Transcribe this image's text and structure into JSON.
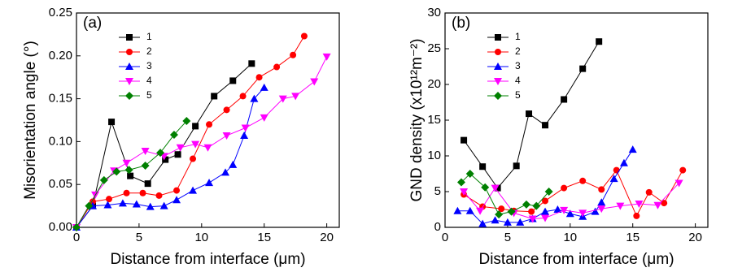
{
  "chart_data": [
    {
      "type": "line",
      "annotation": "(a)",
      "xlabel": "Distance from interface (μm)",
      "ylabel": "Misorientation angle (°)",
      "xlim": [
        0,
        21
      ],
      "xticks": [
        0,
        5,
        10,
        15,
        20
      ],
      "ylim": [
        0,
        0.25
      ],
      "yticks": [
        {
          "value": 0,
          "label": "0.00"
        },
        {
          "value": 0.05,
          "label": "0.05"
        },
        {
          "value": 0.1,
          "label": "0.10"
        },
        {
          "value": 0.15,
          "label": "0.15"
        },
        {
          "value": 0.2,
          "label": "0.20"
        },
        {
          "value": 0.25,
          "label": "0.25"
        }
      ],
      "legend": "upper left",
      "series": [
        {
          "name": "1",
          "color": "#000000",
          "marker": "square",
          "x": [
            0,
            1.3,
            2.8,
            4.3,
            5.7,
            7.1,
            8.1,
            9.5,
            11,
            12.5,
            14
          ],
          "values": [
            0,
            0.025,
            0.123,
            0.06,
            0.051,
            0.079,
            0.085,
            0.118,
            0.153,
            0.171,
            0.191
          ]
        },
        {
          "name": "2",
          "color": "#ff0000",
          "marker": "circle",
          "x": [
            0,
            1.3,
            2.6,
            4,
            5.3,
            6.6,
            8,
            9.3,
            10.6,
            12,
            13.3,
            14.6,
            16,
            17.3,
            18.2
          ],
          "values": [
            0,
            0.03,
            0.033,
            0.04,
            0.04,
            0.037,
            0.043,
            0.08,
            0.12,
            0.137,
            0.153,
            0.175,
            0.187,
            0.201,
            0.223
          ]
        },
        {
          "name": "3",
          "color": "#0000ff",
          "marker": "triangle-up",
          "x": [
            0,
            1.3,
            2.5,
            3.7,
            4.8,
            5.9,
            7,
            8,
            9.3,
            10.6,
            11.9,
            12.5,
            13.4,
            14.2,
            15
          ],
          "values": [
            0,
            0.025,
            0.026,
            0.028,
            0.027,
            0.024,
            0.025,
            0.032,
            0.043,
            0.052,
            0.064,
            0.073,
            0.107,
            0.15,
            0.163
          ]
        },
        {
          "name": "4",
          "color": "#ff00ff",
          "marker": "triangle-down",
          "x": [
            0,
            1.5,
            3,
            4,
            5.5,
            7,
            8.3,
            9.5,
            10.5,
            12,
            13.5,
            15,
            16.5,
            17.5,
            19,
            20
          ],
          "values": [
            0,
            0.038,
            0.066,
            0.075,
            0.089,
            0.083,
            0.093,
            0.097,
            0.093,
            0.107,
            0.116,
            0.128,
            0.15,
            0.153,
            0.17,
            0.199
          ]
        },
        {
          "name": "5",
          "color": "#008000",
          "marker": "diamond",
          "x": [
            0,
            1,
            2.2,
            3.2,
            4.2,
            5.5,
            6.7,
            7.8,
            8.8
          ],
          "values": [
            0,
            0.025,
            0.055,
            0.065,
            0.067,
            0.072,
            0.087,
            0.108,
            0.124
          ]
        }
      ]
    },
    {
      "type": "line",
      "annotation": "(b)",
      "xlabel": "Distance from interface (μm)",
      "ylabel": "GND density (x10¹²m⁻²)",
      "xlim": [
        0,
        21
      ],
      "xticks": [
        0,
        5,
        10,
        15,
        20
      ],
      "ylim": [
        0,
        30
      ],
      "yticks": [
        0,
        5,
        10,
        15,
        20,
        25,
        30
      ],
      "legend": "upper left",
      "series": [
        {
          "name": "1",
          "color": "#000000",
          "marker": "square",
          "x": [
            1.5,
            3,
            4.2,
            5.7,
            6.7,
            8,
            9.5,
            11,
            12.3
          ],
          "values": [
            12.2,
            8.5,
            5.5,
            8.6,
            15.9,
            14.3,
            17.9,
            22.2,
            26
          ]
        },
        {
          "name": "2",
          "color": "#ff0000",
          "marker": "circle",
          "x": [
            1.5,
            3,
            4.5,
            5.5,
            6.9,
            8,
            9.5,
            11,
            12.5,
            13.7,
            15.3,
            16.3,
            17.5,
            19
          ],
          "values": [
            4.6,
            2.9,
            2.6,
            2.3,
            2.2,
            3.7,
            5.5,
            6.5,
            5.3,
            8,
            1.6,
            4.9,
            3.4,
            8
          ]
        },
        {
          "name": "3",
          "color": "#0000ff",
          "marker": "triangle-up",
          "x": [
            1,
            2,
            3,
            4,
            5,
            6,
            7,
            8,
            9,
            10,
            11,
            12,
            12.5,
            13.5,
            14.3,
            15
          ],
          "values": [
            2.3,
            2.3,
            0.5,
            1,
            0.7,
            0.7,
            1.2,
            2.2,
            2.5,
            1.9,
            1.5,
            2.2,
            3.5,
            6.8,
            9,
            10.9
          ]
        },
        {
          "name": "4",
          "color": "#ff00ff",
          "marker": "triangle-down",
          "x": [
            1.5,
            2.8,
            4,
            5.5,
            7,
            8,
            9.5,
            11,
            12.5,
            14,
            15.5,
            17,
            18.7
          ],
          "values": [
            5,
            2.3,
            5.5,
            2,
            1.2,
            1.3,
            2.4,
            2,
            2.6,
            3,
            3.3,
            3.1,
            6.2
          ]
        },
        {
          "name": "5",
          "color": "#008000",
          "marker": "diamond",
          "x": [
            1.3,
            2,
            3.2,
            4.3,
            5.3,
            6.5,
            7.3,
            8.3
          ],
          "values": [
            6.3,
            7.5,
            5.6,
            1.8,
            2.2,
            3.2,
            3,
            5
          ]
        }
      ]
    }
  ]
}
